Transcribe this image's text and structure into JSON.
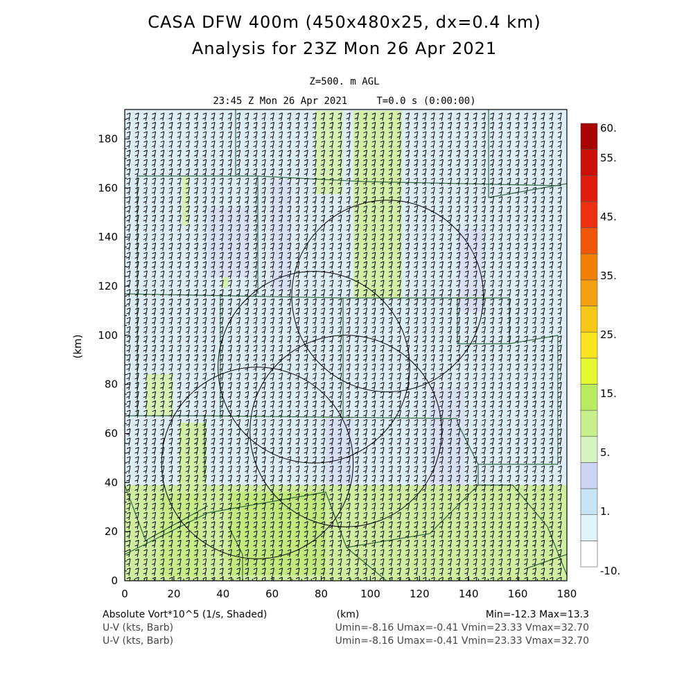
{
  "header": {
    "title_line1": "CASA DFW 400m (450x480x25, dx=0.4 km)",
    "title_line2": "Analysis for 23Z Mon 26 Apr 2021",
    "level": "Z=500. m AGL",
    "valid_time": "23:45 Z Mon 26 Apr 2021     T=0.0 s (0:00:00)"
  },
  "axes": {
    "x_label": "(km)",
    "y_label": "(km)",
    "x_ticks": [
      "0",
      "20",
      "40",
      "60",
      "80",
      "100",
      "120",
      "140",
      "160",
      "180"
    ],
    "y_ticks": [
      "0",
      "20",
      "40",
      "60",
      "80",
      "100",
      "120",
      "140",
      "160",
      "180"
    ]
  },
  "colorbar": {
    "labels": [
      "60.",
      "55.",
      "45.",
      "35.",
      "25.",
      "15.",
      "5.",
      "1.",
      "-10."
    ],
    "colors": [
      "#ffffff",
      "#e0f4fa",
      "#c7e4f4",
      "#ccd6f4",
      "#d8f4c0",
      "#c8f08c",
      "#b8ec60",
      "#e4f830",
      "#fce420",
      "#f8c818",
      "#f4a010",
      "#f28000",
      "#f05808",
      "#ec3010",
      "#e01c10",
      "#cc1008",
      "#a80400"
    ]
  },
  "footer": {
    "field1_name": "Absolute Vort*10^5 (1/s, Shaded)",
    "field1_units": "(km)",
    "field1_range": "Min=-12.3 Max=13.3",
    "field2_name": "U-V (kts, Barb)",
    "field2_range": "Umin=-8.16 Umax=-0.41 Vmin=23.33 Vmax=32.70",
    "field3_name": "U-V (kts, Barb)",
    "field3_range": "Umin=-8.16 Umax=-0.41 Vmin=23.33 Vmax=32.70"
  },
  "chart_data": {
    "type": "heatmap",
    "title": "CASA DFW 400m (450x480x25, dx=0.4 km)",
    "subtitle": "Analysis for 23Z Mon 26 Apr 2021",
    "xlabel": "(km)",
    "ylabel": "(km)",
    "xlim": [
      0,
      180
    ],
    "ylim": [
      0,
      192
    ],
    "field": "Absolute Vort*10^5 (1/s, Shaded)",
    "field_min": -12.3,
    "field_max": 13.3,
    "wind_barbs": {
      "field": "U-V (kts, Barb)",
      "umin": -8.16,
      "umax": -0.41,
      "vmin": 23.33,
      "vmax": 32.7
    },
    "radar_range_rings": [
      {
        "center_km": [
          107,
          116
        ],
        "radius_km": 39
      },
      {
        "center_km": [
          77,
          87
        ],
        "radius_km": 39
      },
      {
        "center_km": [
          54,
          48
        ],
        "radius_km": 39
      },
      {
        "center_km": [
          90,
          61
        ],
        "radius_km": 39
      }
    ]
  }
}
